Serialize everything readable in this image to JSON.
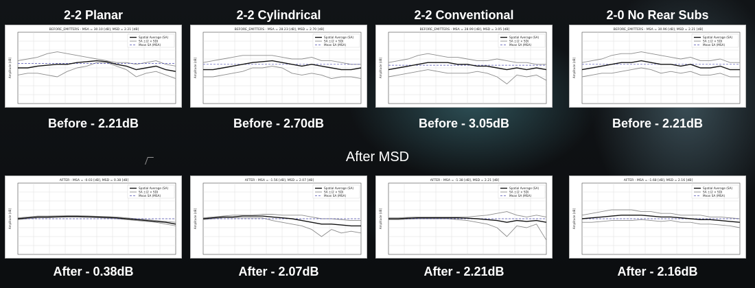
{
  "header": {
    "columns": [
      "2-2 Planar",
      "2-2 Cylindrical",
      "2-2 Conventional",
      "2-0 No Rear Subs"
    ],
    "middle_title": "After MSD"
  },
  "captions": {
    "before": [
      "Before - 2.21dB",
      "Before - 2.70dB",
      "Before - 3.05dB",
      "Before - 2.21dB"
    ],
    "after": [
      "After - 0.38dB",
      "After - 2.07dB",
      "After - 2.21dB",
      "After - 2.16dB"
    ]
  },
  "colors": {
    "background": "#0b0d0f",
    "sa_line": "#111111",
    "sd_band": "#8a8a8a",
    "msa_line": "#4b4bb0",
    "caption_text": "#ffffff"
  },
  "chart_data": [
    {
      "type": "line",
      "title": "BEFORE_EMITTERS - MSA = 30.10 [dB], MSD = 2.21 [dB]",
      "ylabel": "Amplitude [dB]",
      "legend": [
        "Spatial Average (SA)",
        "SA ±(2 × SD)",
        "Mean SA (MSA)"
      ],
      "legend_position": "top-right",
      "grid": true,
      "x": [
        0,
        1,
        2,
        3,
        4,
        5,
        6,
        7,
        8,
        9,
        10,
        11,
        12,
        13,
        14,
        15,
        16
      ],
      "ylim": [
        -20,
        20
      ],
      "series": [
        {
          "name": "Spatial Average (SA)",
          "values": [
            0,
            0,
            1,
            1.5,
            2,
            2,
            3,
            3.5,
            4,
            3.5,
            2,
            1,
            -1,
            0,
            1,
            -1,
            -2
          ]
        },
        {
          "name": "SA +2SD",
          "values": [
            4,
            5,
            6,
            8,
            9,
            8,
            7,
            6,
            5,
            4,
            3,
            3,
            2,
            3,
            4,
            2,
            1
          ]
        },
        {
          "name": "SA -2SD",
          "values": [
            -4,
            -3,
            -3,
            -4,
            -5,
            -2,
            0,
            1,
            3,
            3,
            1,
            -1,
            -5,
            -3,
            -2,
            -4,
            -6
          ]
        },
        {
          "name": "Mean SA (MSA)",
          "values": [
            2.5,
            2.5,
            2.5,
            2.5,
            2.5,
            2.5,
            2.5,
            2.5,
            2.5,
            2.5,
            2.5,
            2.5,
            2.5,
            2.5,
            2.5,
            2.5,
            2.5
          ]
        }
      ]
    },
    {
      "type": "line",
      "title": "BEFORE_EMITTERS - MSA = 28.23 [dB], MSD = 2.70 [dB]",
      "ylabel": "Amplitude [dB]",
      "legend": [
        "Spatial Average (SA)",
        "SA ±(2 × SD)",
        "Mean SA (MSA)"
      ],
      "legend_position": "top-right",
      "grid": true,
      "x": [
        0,
        1,
        2,
        3,
        4,
        5,
        6,
        7,
        8,
        9,
        10,
        11,
        12,
        13,
        14,
        15,
        16
      ],
      "ylim": [
        -20,
        20
      ],
      "series": [
        {
          "name": "Spatial Average (SA)",
          "values": [
            -1,
            -1,
            0,
            1,
            2,
            3,
            3.5,
            4,
            3,
            2,
            1,
            2,
            1,
            0,
            -1,
            -1,
            0
          ]
        },
        {
          "name": "SA +2SD",
          "values": [
            3,
            4,
            5,
            6,
            7,
            7,
            7,
            7,
            6,
            5,
            5,
            6,
            4,
            4,
            3,
            2,
            2
          ]
        },
        {
          "name": "SA -2SD",
          "values": [
            -5,
            -5,
            -4,
            -3,
            -2,
            0,
            0,
            1,
            0,
            -3,
            -4,
            -3,
            -4,
            -6,
            -5,
            -5,
            -6
          ]
        },
        {
          "name": "Mean SA (MSA)",
          "values": [
            2,
            2,
            2,
            2,
            2,
            2,
            2,
            2,
            2,
            2,
            2,
            2,
            2,
            2,
            2,
            2,
            2
          ]
        }
      ]
    },
    {
      "type": "line",
      "title": "BEFORE_EMITTERS - MSA = 28.99 [dB], MSD = 3.05 [dB]",
      "ylabel": "Amplitude [dB]",
      "legend": [
        "Spatial Average (SA)",
        "SA ±(2 × SD)",
        "Mean SA (MSA)"
      ],
      "legend_position": "top-right",
      "grid": true,
      "x": [
        0,
        1,
        2,
        3,
        4,
        5,
        6,
        7,
        8,
        9,
        10,
        11,
        12,
        13,
        14,
        15,
        16
      ],
      "ylim": [
        -20,
        20
      ],
      "series": [
        {
          "name": "Spatial Average (SA)",
          "values": [
            -1,
            0,
            1,
            2,
            3,
            3,
            3,
            2,
            2,
            1,
            1,
            0,
            -1,
            0,
            -1,
            0,
            -1
          ]
        },
        {
          "name": "SA +2SD",
          "values": [
            3,
            4,
            5,
            7,
            8,
            7,
            6,
            6,
            5,
            4,
            4,
            5,
            4,
            3,
            3,
            2,
            2
          ]
        },
        {
          "name": "SA -2SD",
          "values": [
            -5,
            -4,
            -3,
            -2,
            -1,
            -2,
            -3,
            -3,
            -3,
            -2,
            -3,
            -5,
            -9,
            -4,
            -5,
            -4,
            -7
          ]
        },
        {
          "name": "Mean SA (MSA)",
          "values": [
            1.5,
            1.5,
            1.5,
            1.5,
            1.5,
            1.5,
            1.5,
            1.5,
            1.5,
            1.5,
            1.5,
            1.5,
            1.5,
            1.5,
            1.5,
            1.5,
            1.5
          ]
        }
      ]
    },
    {
      "type": "line",
      "title": "BEFORE_EMITTERS - MSA = 30.96 [dB], MSD = 2.21 [dB]",
      "ylabel": "Amplitude [dB]",
      "legend": [
        "Spatial Average (SA)",
        "SA ±(2 × SD)",
        "Mean SA (MSA)"
      ],
      "legend_position": "top-right",
      "grid": true,
      "x": [
        0,
        1,
        2,
        3,
        4,
        5,
        6,
        7,
        8,
        9,
        10,
        11,
        12,
        13,
        14,
        15,
        16
      ],
      "ylim": [
        -20,
        20
      ],
      "series": [
        {
          "name": "Spatial Average (SA)",
          "values": [
            -1,
            0,
            1,
            2,
            3,
            3,
            4,
            3,
            2,
            2,
            1,
            2,
            0,
            0,
            1,
            -1,
            -1
          ]
        },
        {
          "name": "SA +2SD",
          "values": [
            3,
            4,
            5,
            7,
            8,
            8,
            9,
            8,
            7,
            6,
            5,
            6,
            4,
            4,
            5,
            3,
            3
          ]
        },
        {
          "name": "SA -2SD",
          "values": [
            -5,
            -4,
            -3,
            -3,
            -2,
            -1,
            0,
            -1,
            -3,
            -2,
            -3,
            -2,
            -4,
            -4,
            -3,
            -5,
            -5
          ]
        },
        {
          "name": "Mean SA (MSA)",
          "values": [
            2,
            2,
            2,
            2,
            2,
            2,
            2,
            2,
            2,
            2,
            2,
            2,
            2,
            2,
            2,
            2,
            2
          ]
        }
      ]
    },
    {
      "type": "line",
      "title": "AFTER - MSA = -0.03 [dB], MSD = 0.38 [dB]",
      "ylabel": "Amplitude [dB]",
      "legend": [
        "Spatial Average (SA)",
        "SA ±(2 × SD)",
        "Mean SA (MSA)"
      ],
      "legend_position": "top-right",
      "grid": true,
      "x": [
        0,
        1,
        2,
        3,
        4,
        5,
        6,
        7,
        8,
        9,
        10,
        11,
        12,
        13,
        14,
        15,
        16
      ],
      "ylim": [
        -20,
        20
      ],
      "series": [
        {
          "name": "Spatial Average (SA)",
          "values": [
            0,
            0.5,
            1,
            1,
            1.2,
            1.3,
            1.3,
            1.2,
            1,
            0.8,
            0.5,
            0,
            -0.5,
            -1,
            -1.5,
            -2,
            -3
          ]
        },
        {
          "name": "SA +2SD",
          "values": [
            0.5,
            1,
            1.5,
            1.5,
            1.6,
            1.7,
            1.7,
            1.6,
            1.4,
            1.2,
            1,
            0.5,
            0,
            -0.5,
            -1,
            -1.5,
            -2
          ]
        },
        {
          "name": "SA -2SD",
          "values": [
            -0.5,
            0,
            0.5,
            0.5,
            0.8,
            0.9,
            0.9,
            0.8,
            0.6,
            0.4,
            0,
            -0.5,
            -1,
            -1.5,
            -2,
            -3,
            -4
          ]
        },
        {
          "name": "Mean SA (MSA)",
          "values": [
            0,
            0,
            0,
            0,
            0,
            0,
            0,
            0,
            0,
            0,
            0,
            0,
            0,
            0,
            0,
            0,
            0
          ]
        }
      ]
    },
    {
      "type": "line",
      "title": "AFTER - MSA = -1.56 [dB], MSD = 2.07 [dB]",
      "ylabel": "Amplitude [dB]",
      "legend": [
        "Spatial Average (SA)",
        "SA ±(2 × SD)",
        "Mean SA (MSA)"
      ],
      "legend_position": "top-right",
      "grid": true,
      "x": [
        0,
        1,
        2,
        3,
        4,
        5,
        6,
        7,
        8,
        9,
        10,
        11,
        12,
        13,
        14,
        15,
        16
      ],
      "ylim": [
        -20,
        20
      ],
      "series": [
        {
          "name": "Spatial Average (SA)",
          "values": [
            0,
            0.5,
            1,
            1,
            1.5,
            1.5,
            1.5,
            1,
            0.5,
            0,
            -1,
            -2,
            -3,
            -3,
            -3.5,
            -4,
            -4
          ]
        },
        {
          "name": "SA +2SD",
          "values": [
            0.5,
            1,
            1.5,
            2,
            2,
            2,
            2.5,
            2.5,
            2,
            2,
            2,
            1,
            0,
            0,
            -0.5,
            -1,
            -1
          ]
        },
        {
          "name": "SA -2SD",
          "values": [
            -0.5,
            0,
            0.5,
            0.5,
            0.5,
            0.5,
            0.5,
            -1,
            -2,
            -3,
            -4,
            -6,
            -10,
            -6,
            -8,
            -7,
            -8
          ]
        },
        {
          "name": "Mean SA (MSA)",
          "values": [
            0,
            0,
            0,
            0,
            0,
            0,
            0,
            0,
            0,
            0,
            0,
            0,
            0,
            0,
            0,
            0,
            0
          ]
        }
      ]
    },
    {
      "type": "line",
      "title": "AFTER - MSA = -1.38 [dB], MSD = 2.21 [dB]",
      "ylabel": "Amplitude [dB]",
      "legend": [
        "Spatial Average (SA)",
        "SA ±(2 × SD)",
        "Mean SA (MSA)"
      ],
      "legend_position": "top-right",
      "grid": true,
      "x": [
        0,
        1,
        2,
        3,
        4,
        5,
        6,
        7,
        8,
        9,
        10,
        11,
        12,
        13,
        14,
        15,
        16
      ],
      "ylim": [
        -20,
        20
      ],
      "series": [
        {
          "name": "Spatial Average (SA)",
          "values": [
            0,
            0,
            0.3,
            0.5,
            0.5,
            0.5,
            0.5,
            0.5,
            0.3,
            0,
            -0.5,
            -1,
            -2,
            -1,
            -1.5,
            -1,
            -2
          ]
        },
        {
          "name": "SA +2SD",
          "values": [
            0.5,
            0.5,
            0.8,
            1,
            1,
            1,
            1,
            1,
            1,
            1.5,
            2,
            3,
            4,
            2,
            1,
            2,
            1
          ]
        },
        {
          "name": "SA -2SD",
          "values": [
            -0.5,
            -0.5,
            -0.2,
            0,
            0,
            0,
            0,
            -0.5,
            -1,
            -2,
            -3,
            -5,
            -10,
            -4,
            -5,
            -3,
            -12
          ]
        },
        {
          "name": "Mean SA (MSA)",
          "values": [
            0,
            0,
            0,
            0,
            0,
            0,
            0,
            0,
            0,
            0,
            0,
            0,
            0,
            0,
            0,
            0,
            0
          ]
        }
      ]
    },
    {
      "type": "line",
      "title": "AFTER - MSA = -1.68 [dB], MSD = 2.16 [dB]",
      "ylabel": "Amplitude [dB]",
      "legend": [
        "Spatial Average (SA)",
        "SA ±(2 × SD)",
        "Mean SA (MSA)"
      ],
      "legend_position": "top-right",
      "grid": true,
      "x": [
        0,
        1,
        2,
        3,
        4,
        5,
        6,
        7,
        8,
        9,
        10,
        11,
        12,
        13,
        14,
        15,
        16
      ],
      "ylim": [
        -20,
        20
      ],
      "series": [
        {
          "name": "Spatial Average (SA)",
          "values": [
            0,
            0.5,
            1,
            1.5,
            2,
            2,
            2,
            1.5,
            1,
            1,
            0.5,
            0,
            -0.5,
            -0.5,
            -1,
            -1.5,
            -2
          ]
        },
        {
          "name": "SA +2SD",
          "values": [
            2,
            3,
            4,
            5,
            5,
            5,
            4,
            4,
            3,
            3,
            2,
            2,
            2,
            1,
            1,
            0.5,
            0
          ]
        },
        {
          "name": "SA -2SD",
          "values": [
            -2,
            -2,
            -1.5,
            -1,
            -1,
            -1,
            -0.5,
            -1,
            -1.5,
            -1,
            -2,
            -2,
            -3,
            -3,
            -3.5,
            -4,
            -5
          ]
        },
        {
          "name": "Mean SA (MSA)",
          "values": [
            0,
            0,
            0,
            0,
            0,
            0,
            0,
            0,
            0,
            0,
            0,
            0,
            0,
            0,
            0,
            0,
            0
          ]
        }
      ]
    }
  ]
}
